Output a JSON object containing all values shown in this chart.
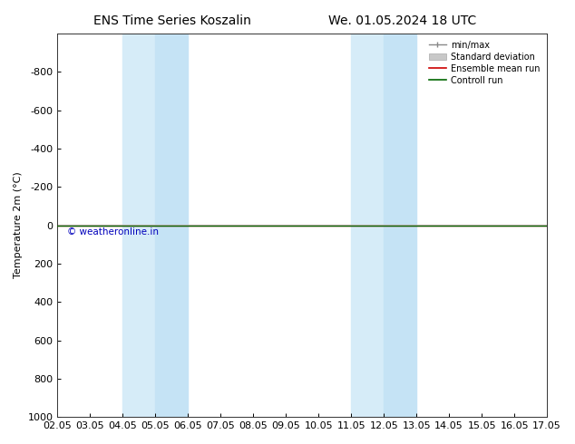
{
  "title_left": "ENS Time Series Koszalin",
  "title_right": "We. 01.05.2024 18 UTC",
  "xlabel": "",
  "ylabel": "Temperature 2m (°C)",
  "xlim": [
    0,
    15
  ],
  "ylim": [
    1000,
    -1000
  ],
  "yticks": [
    -800,
    -600,
    -400,
    -200,
    0,
    200,
    400,
    600,
    800,
    1000
  ],
  "xtick_labels": [
    "02.05",
    "03.05",
    "04.05",
    "05.05",
    "06.05",
    "07.05",
    "08.05",
    "09.05",
    "10.05",
    "11.05",
    "12.05",
    "13.05",
    "14.05",
    "15.05",
    "16.05",
    "17.05"
  ],
  "xtick_positions": [
    0,
    1,
    2,
    3,
    4,
    5,
    6,
    7,
    8,
    9,
    10,
    11,
    12,
    13,
    14,
    15
  ],
  "shaded_bands": [
    {
      "x_start": 2.0,
      "x_end": 2.5
    },
    {
      "x_start": 2.5,
      "x_end": 4.0
    },
    {
      "x_start": 9.0,
      "x_end": 9.5
    },
    {
      "x_start": 9.5,
      "x_end": 11.0
    }
  ],
  "shaded_colors": [
    "#ddeef8",
    "#cce4f5",
    "#ddeef8",
    "#cce4f5"
  ],
  "shaded_color": "#cce4f5",
  "shaded_color_light": "#ddeef8",
  "horizontal_line_y": 0,
  "ensemble_mean_color": "#cc0000",
  "control_run_color": "#006600",
  "std_dev_color": "#c8c8c8",
  "minmax_color": "#888888",
  "watermark_text": "© weatheronline.in",
  "watermark_color": "#0000bb",
  "background_color": "#ffffff",
  "legend_entries": [
    "min/max",
    "Standard deviation",
    "Ensemble mean run",
    "Controll run"
  ],
  "font_size": 8,
  "title_font_size": 10
}
